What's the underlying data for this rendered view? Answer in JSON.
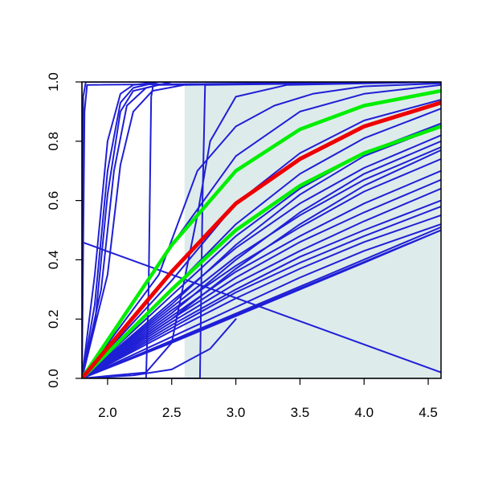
{
  "chart_data": {
    "type": "line",
    "title": "",
    "xlabel": "",
    "ylabel": "",
    "xlim": [
      1.8,
      4.6
    ],
    "ylim": [
      0.0,
      1.0
    ],
    "x_ticks": [
      {
        "value": 2.0,
        "label": "2.0"
      },
      {
        "value": 2.5,
        "label": "2.5"
      },
      {
        "value": 3.0,
        "label": "3.0"
      },
      {
        "value": 3.5,
        "label": "3.5"
      },
      {
        "value": 4.0,
        "label": "4.0"
      },
      {
        "value": 4.5,
        "label": "4.5"
      }
    ],
    "y_ticks": [
      {
        "value": 0.0,
        "label": "0.0"
      },
      {
        "value": 0.2,
        "label": "0.2"
      },
      {
        "value": 0.4,
        "label": "0.4"
      },
      {
        "value": 0.6,
        "label": "0.6"
      },
      {
        "value": 0.8,
        "label": "0.8"
      },
      {
        "value": 1.0,
        "label": "1.0"
      }
    ],
    "grid": false,
    "legend": "none",
    "shaded_region": {
      "x": [
        2.6,
        4.6
      ],
      "color": "#deebeb"
    },
    "colors": {
      "bundle": "#1f1fd6",
      "highlight": "#ee0000",
      "band": "#00ee00"
    },
    "series": [
      {
        "role": "bundle",
        "x": [
          1.8,
          1.82,
          1.84,
          4.6
        ],
        "y": [
          0.0,
          0.9,
          0.99,
          1.0
        ]
      },
      {
        "role": "bundle",
        "x": [
          1.8,
          1.81,
          1.83,
          4.6
        ],
        "y": [
          0.0,
          0.95,
          1.0,
          1.0
        ]
      },
      {
        "role": "bundle",
        "x": [
          1.8,
          1.9,
          2.0,
          2.1,
          2.2,
          2.4,
          4.6
        ],
        "y": [
          0.0,
          0.35,
          0.8,
          0.96,
          0.99,
          1.0,
          1.0
        ]
      },
      {
        "role": "bundle",
        "x": [
          1.8,
          1.9,
          2.0,
          2.1,
          2.2,
          2.4,
          4.6
        ],
        "y": [
          0.0,
          0.25,
          0.7,
          0.93,
          0.98,
          1.0,
          1.0
        ]
      },
      {
        "role": "bundle",
        "x": [
          1.8,
          1.9,
          2.0,
          2.1,
          2.2,
          2.4,
          4.6
        ],
        "y": [
          0.0,
          0.18,
          0.62,
          0.9,
          0.97,
          0.99,
          1.0
        ]
      },
      {
        "role": "bundle",
        "x": [
          1.8,
          1.95,
          2.05,
          2.15,
          2.3,
          2.5,
          4.6
        ],
        "y": [
          0.0,
          0.3,
          0.7,
          0.92,
          0.98,
          1.0,
          1.0
        ]
      },
      {
        "role": "bundle",
        "x": [
          1.8,
          2.0,
          2.1,
          2.2,
          2.35,
          2.6,
          4.6
        ],
        "y": [
          0.0,
          0.35,
          0.72,
          0.9,
          0.97,
          0.99,
          1.0
        ]
      },
      {
        "role": "bundle",
        "x": [
          1.8,
          2.3,
          2.32,
          2.34,
          2.36,
          4.6
        ],
        "y": [
          0.0,
          0.0,
          0.3,
          0.95,
          1.0,
          1.0
        ]
      },
      {
        "role": "bundle",
        "x": [
          1.8,
          2.72,
          2.74,
          2.76,
          4.6
        ],
        "y": [
          0.0,
          0.0,
          0.6,
          0.99,
          1.0
        ]
      },
      {
        "role": "bundle",
        "x": [
          1.8,
          2.3,
          2.5,
          2.7,
          2.8,
          3.0,
          3.4,
          4.6
        ],
        "y": [
          0.0,
          0.02,
          0.12,
          0.55,
          0.8,
          0.95,
          0.99,
          1.0
        ]
      },
      {
        "role": "bundle",
        "x": [
          1.8,
          2.4,
          2.7,
          3.0,
          3.3,
          3.6,
          4.0,
          4.6
        ],
        "y": [
          0.0,
          0.35,
          0.7,
          0.85,
          0.92,
          0.96,
          0.985,
          0.995
        ]
      },
      {
        "role": "bundle",
        "x": [
          1.8,
          2.5,
          3.0,
          3.5,
          4.0,
          4.6
        ],
        "y": [
          0.0,
          0.45,
          0.75,
          0.9,
          0.96,
          0.99
        ]
      },
      {
        "role": "bundle",
        "x": [
          1.8,
          2.5,
          3.0,
          3.5,
          4.0,
          4.6
        ],
        "y": [
          0.0,
          0.33,
          0.59,
          0.76,
          0.87,
          0.94
        ]
      },
      {
        "role": "bundle",
        "x": [
          1.8,
          2.5,
          3.0,
          3.5,
          4.0,
          4.6
        ],
        "y": [
          0.0,
          0.3,
          0.52,
          0.69,
          0.81,
          0.91
        ]
      },
      {
        "role": "bundle",
        "x": [
          1.8,
          2.5,
          3.0,
          3.5,
          4.0,
          4.6
        ],
        "y": [
          0.0,
          0.28,
          0.48,
          0.64,
          0.76,
          0.86
        ]
      },
      {
        "role": "bundle",
        "x": [
          1.8,
          2.5,
          3.0,
          3.5,
          4.0,
          4.6
        ],
        "y": [
          0.0,
          0.26,
          0.44,
          0.59,
          0.71,
          0.82
        ]
      },
      {
        "role": "bundle",
        "x": [
          1.8,
          2.5,
          3.0,
          3.5,
          4.0,
          4.6
        ],
        "y": [
          0.0,
          0.24,
          0.41,
          0.55,
          0.67,
          0.78
        ]
      },
      {
        "role": "bundle",
        "x": [
          1.8,
          2.5,
          3.0,
          3.5,
          4.0,
          4.6
        ],
        "y": [
          0.0,
          0.23,
          0.38,
          0.51,
          0.63,
          0.74
        ]
      },
      {
        "role": "bundle",
        "x": [
          1.8,
          2.5,
          3.0,
          3.5,
          4.0,
          4.6
        ],
        "y": [
          0.0,
          0.21,
          0.36,
          0.48,
          0.59,
          0.7
        ]
      },
      {
        "role": "bundle",
        "x": [
          1.8,
          2.5,
          3.0,
          3.5,
          4.0,
          4.6
        ],
        "y": [
          0.0,
          0.2,
          0.34,
          0.46,
          0.56,
          0.67
        ]
      },
      {
        "role": "bundle",
        "x": [
          1.8,
          2.5,
          3.0,
          3.5,
          4.0,
          4.6
        ],
        "y": [
          0.0,
          0.19,
          0.32,
          0.43,
          0.53,
          0.64
        ]
      },
      {
        "role": "bundle",
        "x": [
          1.8,
          2.5,
          3.0,
          3.5,
          4.0,
          4.6
        ],
        "y": [
          0.0,
          0.18,
          0.3,
          0.41,
          0.5,
          0.6
        ]
      },
      {
        "role": "bundle",
        "x": [
          1.8,
          2.5,
          3.0,
          3.5,
          4.0,
          4.6
        ],
        "y": [
          0.0,
          0.17,
          0.29,
          0.39,
          0.48,
          0.58
        ]
      },
      {
        "role": "bundle",
        "x": [
          1.8,
          2.5,
          3.0,
          3.5,
          4.0,
          4.6
        ],
        "y": [
          0.0,
          0.14,
          0.24,
          0.34,
          0.43,
          0.52
        ]
      },
      {
        "role": "bundle",
        "x": [
          1.8,
          2.5,
          3.0,
          3.5,
          4.0,
          4.6
        ],
        "y": [
          0.0,
          0.12,
          0.21,
          0.3,
          0.39,
          0.5
        ]
      },
      {
        "role": "bundle",
        "x": [
          1.8,
          2.5,
          3.0,
          3.5,
          4.0,
          4.6
        ],
        "y": [
          0.0,
          0.22,
          0.4,
          0.56,
          0.69,
          0.8
        ]
      },
      {
        "role": "bundle",
        "x": [
          1.8,
          2.5,
          3.0,
          3.5,
          4.0,
          4.6
        ],
        "y": [
          0.0,
          0.25,
          0.45,
          0.62,
          0.75,
          0.85
        ]
      },
      {
        "role": "bundle",
        "x": [
          1.8,
          2.5,
          3.0,
          3.5,
          4.0,
          4.6
        ],
        "y": [
          0.0,
          0.2,
          0.37,
          0.52,
          0.65,
          0.77
        ]
      },
      {
        "role": "bundle",
        "x": [
          1.8,
          2.5,
          3.0,
          3.5,
          4.0,
          4.6
        ],
        "y": [
          0.0,
          0.16,
          0.27,
          0.37,
          0.46,
          0.55
        ]
      },
      {
        "role": "bundle",
        "x": [
          1.8,
          2.2,
          2.5,
          2.8,
          3.0
        ],
        "y": [
          0.0,
          0.01,
          0.03,
          0.1,
          0.2
        ]
      },
      {
        "role": "bundle",
        "x": [
          1.8,
          4.6
        ],
        "y": [
          0.0,
          0.5
        ]
      },
      {
        "role": "bundle",
        "x": [
          1.8,
          4.6
        ],
        "y": [
          0.0,
          0.51
        ]
      },
      {
        "role": "bundle",
        "x": [
          1.8,
          4.6
        ],
        "y": [
          0.46,
          0.02
        ]
      },
      {
        "role": "highlight",
        "x": [
          1.8,
          2.5,
          3.0,
          3.5,
          4.0,
          4.6
        ],
        "y": [
          0.0,
          0.36,
          0.59,
          0.74,
          0.85,
          0.93
        ]
      },
      {
        "role": "band",
        "x": [
          1.8,
          2.5,
          3.0,
          3.5,
          4.0,
          4.6
        ],
        "y": [
          0.0,
          0.45,
          0.7,
          0.84,
          0.92,
          0.97
        ]
      },
      {
        "role": "band",
        "x": [
          1.8,
          2.5,
          3.0,
          3.5,
          4.0,
          4.6
        ],
        "y": [
          0.0,
          0.3,
          0.5,
          0.65,
          0.76,
          0.85
        ]
      }
    ]
  }
}
